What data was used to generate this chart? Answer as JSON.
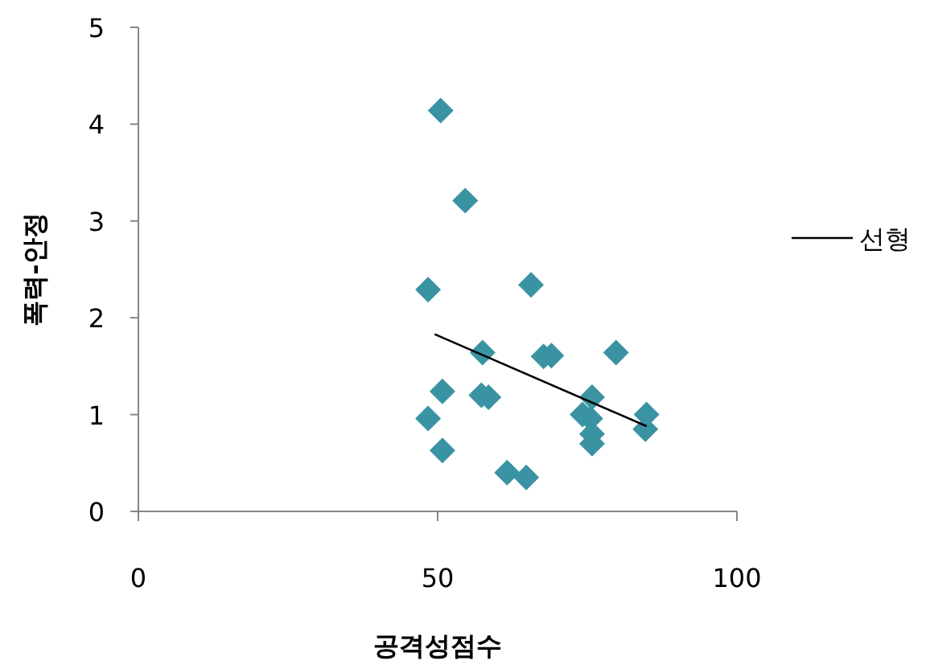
{
  "chart_data": {
    "type": "scatter",
    "xlabel": "공격성점수",
    "ylabel": "폭력-안정",
    "xlim": [
      0,
      100
    ],
    "xticks": [
      0,
      50,
      100
    ],
    "ylim": [
      0,
      5
    ],
    "yticks": [
      0,
      1,
      2,
      3,
      4,
      5
    ],
    "grid": false,
    "legend": "right",
    "series": [
      {
        "marker": "diamond",
        "color": "#3a93a3",
        "x": [
          50.5,
          54.6,
          48.4,
          65.6,
          57.5,
          67.7,
          69,
          79.8,
          50.8,
          57.3,
          58.5,
          75.8,
          48.4,
          74.2,
          75.5,
          84.9,
          84.7,
          75.8,
          75.8,
          50.8,
          61.6,
          64.8
        ],
        "values": [
          4.14,
          3.21,
          2.29,
          2.34,
          1.64,
          1.6,
          1.61,
          1.64,
          1.24,
          1.2,
          1.18,
          1.18,
          0.96,
          1.0,
          0.96,
          1.0,
          0.85,
          0.8,
          0.7,
          0.63,
          0.4,
          0.35
        ]
      },
      {
        "type": "line",
        "marker": "none",
        "name": "선형",
        "color": "#000000",
        "x": [
          49.5,
          84.9
        ],
        "values": [
          1.83,
          0.88
        ]
      }
    ]
  }
}
